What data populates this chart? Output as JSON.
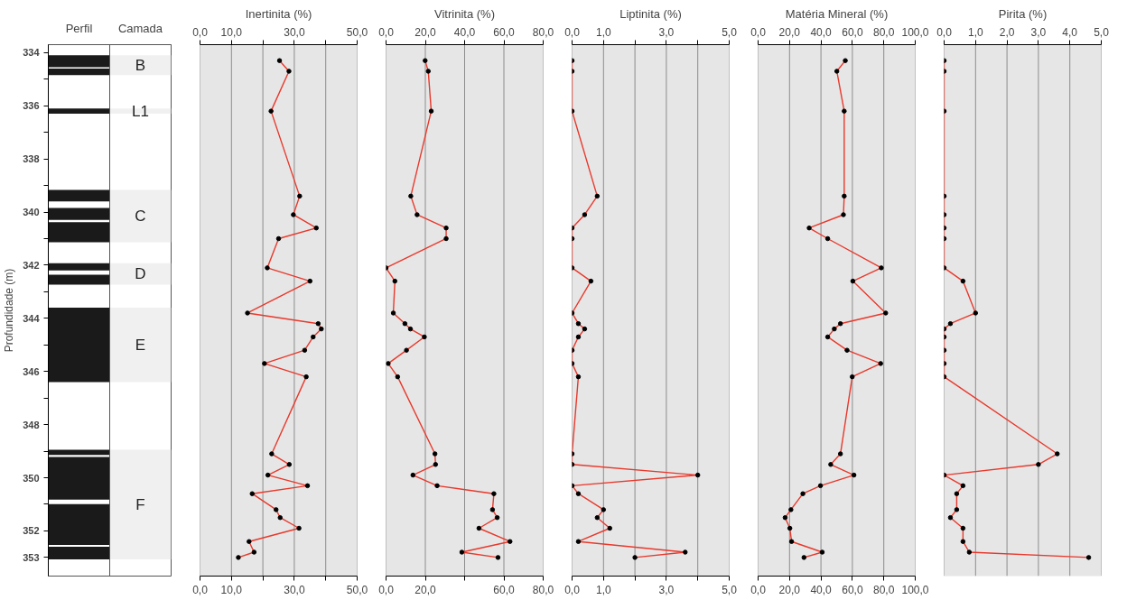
{
  "chart_data": [
    {
      "type": "bar",
      "ylabel": "Profundidade (m)",
      "categories": [
        "Perfil",
        "Camada"
      ],
      "values": [
        null,
        null
      ],
      "ylim": [
        353.7,
        333.7
      ],
      "yticks": [
        334,
        {
          "value": 335,
          "label": null
        },
        336,
        {
          "value": 337,
          "label": null
        },
        338,
        {
          "value": 339,
          "label": null
        },
        340,
        {
          "value": 341,
          "label": null
        },
        342,
        {
          "value": 343,
          "label": null
        },
        344,
        {
          "value": 345,
          "label": null
        },
        346,
        {
          "value": 347,
          "label": null
        },
        348,
        {
          "value": 349,
          "label": null
        },
        350,
        {
          "value": 351,
          "label": null
        },
        352,
        353
      ],
      "bands": [
        {
          "axis": "y",
          "from": 334.1,
          "to": 334.85,
          "label": "B",
          "color": "#f0f0f0"
        },
        {
          "axis": "y",
          "from": 336.1,
          "to": 336.3,
          "label": "L1",
          "color": "#f0f0f0"
        },
        {
          "axis": "y",
          "from": 339.17,
          "to": 341.14,
          "label": "C",
          "color": "#f0f0f0"
        },
        {
          "axis": "y",
          "from": 341.93,
          "to": 342.73,
          "label": "D",
          "color": "#f0f0f0"
        },
        {
          "axis": "y",
          "from": 343.6,
          "to": 346.4,
          "label": "E",
          "color": "#f0f0f0"
        },
        {
          "axis": "y",
          "from": 348.95,
          "to": 353.07,
          "label": "F",
          "color": "#f0f0f0"
        },
        {
          "axis": "y",
          "from": 334.1,
          "to": 334.55,
          "color": "#1a1a1a"
        },
        {
          "axis": "y",
          "from": 334.6,
          "to": 334.85,
          "color": "#1a1a1a"
        },
        {
          "axis": "y",
          "from": 336.1,
          "to": 336.3,
          "color": "#1a1a1a"
        },
        {
          "axis": "y",
          "from": 339.17,
          "to": 339.6,
          "color": "#1a1a1a"
        },
        {
          "axis": "y",
          "from": 339.85,
          "to": 340.3,
          "color": "#1a1a1a"
        },
        {
          "axis": "y",
          "from": 340.38,
          "to": 341.14,
          "color": "#1a1a1a"
        },
        {
          "axis": "y",
          "from": 341.93,
          "to": 342.2,
          "color": "#1a1a1a"
        },
        {
          "axis": "y",
          "from": 342.36,
          "to": 342.73,
          "color": "#1a1a1a"
        },
        {
          "axis": "y",
          "from": 343.6,
          "to": 346.4,
          "color": "#1a1a1a"
        },
        {
          "axis": "y",
          "from": 348.95,
          "to": 349.14,
          "color": "#1a1a1a"
        },
        {
          "axis": "y",
          "from": 349.22,
          "to": 350.82,
          "color": "#1a1a1a"
        },
        {
          "axis": "y",
          "from": 350.99,
          "to": 352.53,
          "color": "#1a1a1a"
        },
        {
          "axis": "y",
          "from": 352.6,
          "to": 353.07,
          "color": "#1a1a1a"
        }
      ]
    },
    {
      "type": "line",
      "title": "Inertinita (%)",
      "orientation": "horizontal",
      "marker": "circle",
      "grid": "x",
      "tick_labels": "x",
      "x": [
        334.3,
        334.7,
        336.2,
        339.4,
        340.1,
        340.6,
        341.0,
        342.1,
        342.6,
        343.8,
        344.2,
        344.4,
        344.7,
        345.2,
        345.7,
        346.2,
        349.1,
        349.5,
        349.9,
        350.3,
        350.6,
        351.2,
        351.5,
        351.9,
        352.4,
        352.8,
        353.0
      ],
      "ylim": [
        353.7,
        333.7
      ],
      "xlim": [
        0,
        50
      ],
      "xticks": [
        {
          "value": 0,
          "label": "0,0"
        },
        {
          "value": 10,
          "label": "10,0"
        },
        {
          "value": 20,
          "label": null
        },
        {
          "value": 30,
          "label": "30,0"
        },
        {
          "value": 40,
          "label": null
        },
        {
          "value": 50,
          "label": "50,0"
        }
      ],
      "x2lim": [
        0,
        50
      ],
      "x2ticks": [
        {
          "value": 0,
          "label": "0,0"
        },
        {
          "value": 10,
          "label": "10,0"
        },
        {
          "value": 20,
          "label": null
        },
        {
          "value": 30,
          "label": "30,0"
        },
        {
          "value": 40,
          "label": null
        },
        {
          "value": 50,
          "label": "50,0"
        }
      ],
      "series": [
        {
          "color": "#e8392c",
          "values": [
            25.3,
            28.3,
            22.6,
            31.7,
            29.7,
            37.0,
            25.0,
            21.4,
            35.0,
            15.1,
            37.6,
            38.6,
            36.0,
            33.3,
            20.5,
            33.8,
            22.8,
            28.4,
            21.6,
            34.2,
            16.6,
            24.2,
            25.5,
            31.5,
            15.6,
            17.2,
            12.2
          ]
        }
      ]
    },
    {
      "type": "line",
      "title": "Vitrinita (%)",
      "orientation": "horizontal",
      "marker": "circle",
      "grid": "x",
      "tick_labels": "x",
      "x": [
        334.3,
        334.7,
        336.2,
        339.4,
        340.1,
        340.6,
        341.0,
        342.1,
        342.6,
        343.8,
        344.2,
        344.4,
        344.7,
        345.2,
        345.7,
        346.2,
        349.1,
        349.5,
        349.9,
        350.3,
        350.6,
        351.2,
        351.5,
        351.9,
        352.4,
        352.8,
        353.0
      ],
      "ylim": [
        353.7,
        333.7
      ],
      "xlim": [
        0,
        80
      ],
      "xticks": [
        {
          "value": 0,
          "label": "0,0"
        },
        {
          "value": 20,
          "label": "20,0"
        },
        {
          "value": 40,
          "label": null
        },
        {
          "value": 60,
          "label": "60,0"
        },
        {
          "value": 80,
          "label": "80,0"
        }
      ],
      "x2lim": [
        0,
        80
      ],
      "x2ticks": [
        {
          "value": 0,
          "label": "0,0"
        },
        {
          "value": 20,
          "label": "20,0"
        },
        {
          "value": 40,
          "label": "40,0"
        },
        {
          "value": 60,
          "label": "60,0"
        },
        {
          "value": 80,
          "label": "80,0"
        }
      ],
      "series": [
        {
          "color": "#e8392c",
          "values": [
            19.9,
            21.5,
            23.0,
            12.6,
            15.8,
            30.6,
            30.6,
            0.0,
            4.5,
            3.7,
            9.6,
            12.4,
            19.5,
            10.4,
            1.1,
            5.9,
            24.9,
            25.2,
            13.7,
            26.0,
            54.9,
            54.2,
            56.6,
            47.3,
            63.1,
            38.6,
            57.0
          ]
        }
      ]
    },
    {
      "type": "line",
      "title": "Liptinita (%)",
      "orientation": "horizontal",
      "marker": "circle",
      "grid": "x",
      "tick_labels": "x",
      "x": [
        334.3,
        334.7,
        336.2,
        339.4,
        340.1,
        340.6,
        341.0,
        342.1,
        342.6,
        343.8,
        344.2,
        344.4,
        344.7,
        345.2,
        345.7,
        346.2,
        349.1,
        349.5,
        349.9,
        350.3,
        350.6,
        351.2,
        351.5,
        351.9,
        352.4,
        352.8,
        353.0
      ],
      "ylim": [
        353.7,
        333.7
      ],
      "xlim": [
        0,
        5
      ],
      "xticks": [
        {
          "value": 0,
          "label": "0,0"
        },
        {
          "value": 1,
          "label": "1,0"
        },
        {
          "value": 2,
          "label": null
        },
        {
          "value": 3,
          "label": "3,0"
        },
        {
          "value": 4,
          "label": null
        },
        {
          "value": 5,
          "label": "5,0"
        }
      ],
      "x2lim": [
        0,
        5
      ],
      "x2ticks": [
        {
          "value": 0,
          "label": "0,0"
        },
        {
          "value": 1,
          "label": "1,0"
        },
        {
          "value": 2,
          "label": null
        },
        {
          "value": 3,
          "label": "3,0"
        },
        {
          "value": 4,
          "label": null
        },
        {
          "value": 5,
          "label": "5,0"
        }
      ],
      "series": [
        {
          "color": "#e8392c",
          "values": [
            0,
            0,
            0,
            0.8,
            0.4,
            0,
            0,
            0,
            0.6,
            0,
            0.2,
            0.4,
            0.2,
            0,
            0,
            0.2,
            0,
            0,
            4.0,
            0,
            0.2,
            1.0,
            0.8,
            1.2,
            0.2,
            3.6,
            2.0
          ]
        }
      ]
    },
    {
      "type": "line",
      "title": "Matéria Mineral (%)",
      "orientation": "horizontal",
      "marker": "circle",
      "grid": "x",
      "tick_labels": "x",
      "x": [
        334.3,
        334.7,
        336.2,
        339.4,
        340.1,
        340.6,
        341.0,
        342.1,
        342.6,
        343.8,
        344.2,
        344.4,
        344.7,
        345.2,
        345.7,
        346.2,
        349.1,
        349.5,
        349.9,
        350.3,
        350.6,
        351.2,
        351.5,
        351.9,
        352.4,
        352.8,
        353.0
      ],
      "ylim": [
        353.7,
        333.7
      ],
      "xlim": [
        0,
        100
      ],
      "xticks": [
        {
          "value": 0,
          "label": "0,0"
        },
        {
          "value": 20,
          "label": "20,0"
        },
        {
          "value": 40,
          "label": "40,0"
        },
        {
          "value": 60,
          "label": "60,0"
        },
        {
          "value": 80,
          "label": "80,0"
        },
        {
          "value": 100,
          "label": "100,0"
        }
      ],
      "x2lim": [
        0,
        100
      ],
      "x2ticks": [
        {
          "value": 0,
          "label": "0,0"
        },
        {
          "value": 20,
          "label": "20,0"
        },
        {
          "value": 40,
          "label": "40,0"
        },
        {
          "value": 60,
          "label": "60,0"
        },
        {
          "value": 80,
          "label": "80,0"
        },
        {
          "value": 100,
          "label": "100,0"
        }
      ],
      "series": [
        {
          "color": "#e8392c",
          "values": [
            55.5,
            50.1,
            54.8,
            54.8,
            54.3,
            32.5,
            44.3,
            78.4,
            60.3,
            81.2,
            52.4,
            48.5,
            44.3,
            56.6,
            78.0,
            59.9,
            52.4,
            46.2,
            61.0,
            39.7,
            28.5,
            20.9,
            17.2,
            20.2,
            21.3,
            40.8,
            29.2
          ]
        }
      ]
    },
    {
      "type": "line",
      "title": "Pirita (%)",
      "orientation": "horizontal",
      "marker": "circle",
      "grid": "x",
      "x": [
        334.3,
        334.7,
        336.2,
        339.4,
        340.1,
        340.6,
        341.0,
        342.1,
        342.6,
        343.8,
        344.2,
        344.4,
        344.7,
        345.2,
        345.7,
        346.2,
        349.1,
        349.5,
        349.9,
        350.3,
        350.6,
        351.2,
        351.5,
        351.9,
        352.4,
        352.8,
        353.0
      ],
      "ylim": [
        353.7,
        333.7
      ],
      "x2lim": [
        0,
        5
      ],
      "x2ticks": [
        {
          "value": 0,
          "label": "0,0"
        },
        {
          "value": 1,
          "label": "1,0"
        },
        {
          "value": 2,
          "label": "2,0"
        },
        {
          "value": 3,
          "label": "3,0"
        },
        {
          "value": 4,
          "label": "4,0"
        },
        {
          "value": 5,
          "label": "5,0"
        }
      ],
      "series": [
        {
          "color": "#e8392c",
          "axis": "x2",
          "values": [
            0,
            0,
            0,
            0,
            0,
            0,
            0,
            0,
            0.6,
            1.0,
            0.2,
            0,
            0,
            0,
            0,
            0,
            3.6,
            3.0,
            0,
            0.6,
            0.4,
            0.4,
            0.2,
            0.6,
            0.6,
            0.8,
            4.6
          ]
        }
      ]
    }
  ]
}
